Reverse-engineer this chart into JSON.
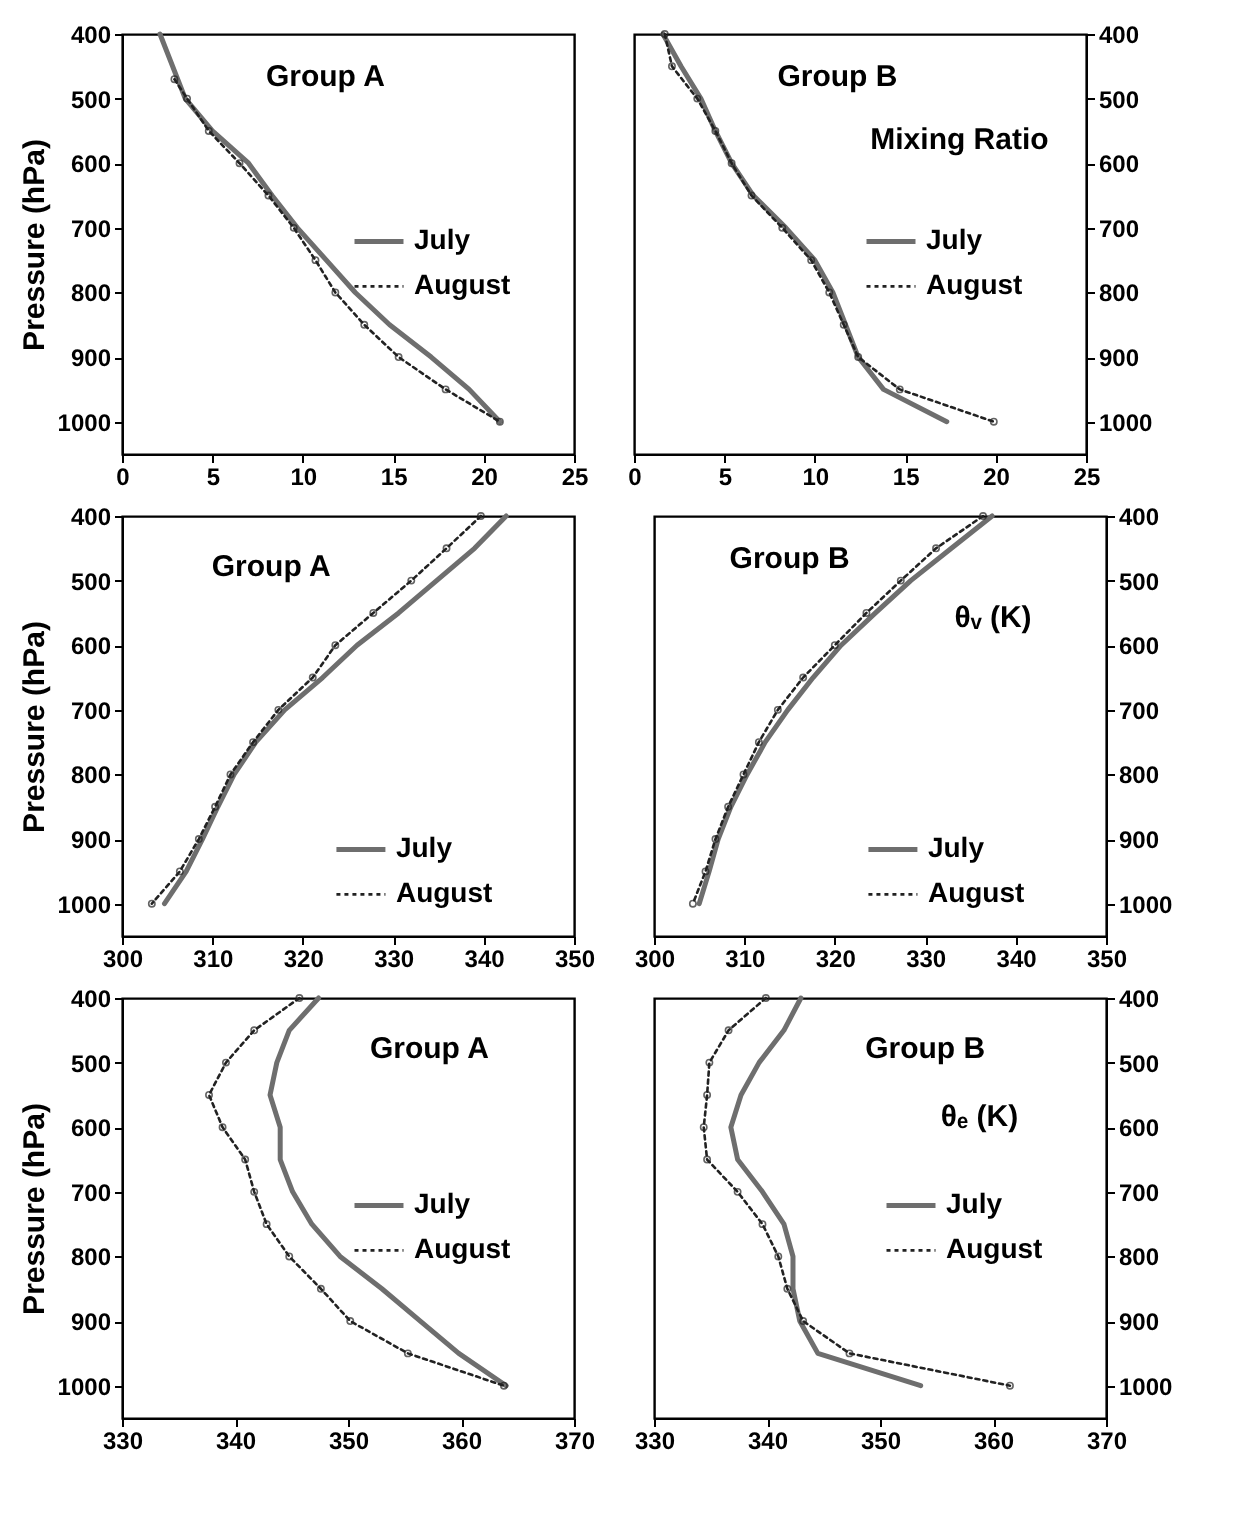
{
  "chart_data": [
    {
      "type": "line",
      "annotations": [
        "Group A"
      ],
      "ylabel": "Pressure (hPa)",
      "xlim": [
        0,
        25
      ],
      "xticks": [
        0,
        5,
        10,
        15,
        20,
        25
      ],
      "ylim": [
        1050,
        400
      ],
      "yticks": [
        400,
        500,
        600,
        700,
        800,
        900,
        1000
      ],
      "legend": "right",
      "grid": false,
      "series": [
        {
          "name": "July",
          "color": "#6e6e6e",
          "line_style": "solid",
          "marker": "none",
          "x": [
            2.1,
            3.5,
            5.0,
            7.0,
            8.3,
            9.7,
            11.3,
            12.9,
            14.8,
            17.1,
            19.2,
            20.9
          ],
          "values": [
            400,
            500,
            550,
            600,
            650,
            700,
            750,
            800,
            850,
            900,
            950,
            1000
          ]
        },
        {
          "name": "August",
          "color": "#222222",
          "line_style": "dotted",
          "marker": "circle",
          "x": [
            2.9,
            3.6,
            4.8,
            6.5,
            8.1,
            9.5,
            10.7,
            11.8,
            13.4,
            15.3,
            17.9,
            20.9
          ],
          "values": [
            470,
            500,
            550,
            600,
            650,
            700,
            750,
            800,
            850,
            900,
            950,
            1000
          ]
        }
      ]
    },
    {
      "type": "line",
      "annotations": [
        "Group B",
        "Mixing Ratio"
      ],
      "xlim": [
        0,
        25
      ],
      "xticks": [
        0,
        5,
        10,
        15,
        20,
        25
      ],
      "ylim": [
        1050,
        400
      ],
      "yticks": [
        400,
        500,
        600,
        700,
        800,
        900,
        1000
      ],
      "legend": "right",
      "grid": false,
      "series": [
        {
          "name": "July",
          "color": "#6e6e6e",
          "line_style": "solid",
          "marker": "none",
          "x": [
            1.6,
            2.6,
            3.7,
            4.5,
            5.4,
            6.6,
            8.4,
            10.0,
            11.0,
            11.7,
            12.4,
            13.8,
            17.3
          ],
          "values": [
            400,
            450,
            500,
            550,
            600,
            650,
            700,
            750,
            800,
            850,
            900,
            950,
            1000
          ]
        },
        {
          "name": "August",
          "color": "#222222",
          "line_style": "dotted",
          "marker": "circle",
          "x": [
            1.7,
            2.1,
            3.5,
            4.5,
            5.4,
            6.5,
            8.2,
            9.8,
            10.8,
            11.6,
            12.4,
            14.7,
            19.9
          ],
          "values": [
            400,
            450,
            500,
            550,
            600,
            650,
            700,
            750,
            800,
            850,
            900,
            950,
            1000
          ]
        }
      ]
    },
    {
      "type": "line",
      "annotations": [
        "Group A"
      ],
      "ylabel": "Pressure (hPa)",
      "xlim": [
        300,
        350
      ],
      "xticks": [
        300,
        310,
        320,
        330,
        340,
        350
      ],
      "ylim": [
        1050,
        400
      ],
      "yticks": [
        400,
        500,
        600,
        700,
        800,
        900,
        1000
      ],
      "legend": "bottom right",
      "grid": false,
      "series": [
        {
          "name": "July",
          "color": "#6e6e6e",
          "line_style": "solid",
          "marker": "none",
          "x": [
            342.5,
            339.0,
            334.8,
            330.6,
            326.0,
            322.2,
            318.0,
            314.8,
            312.4,
            310.6,
            308.9,
            307.1,
            304.7
          ],
          "values": [
            400,
            450,
            500,
            550,
            600,
            650,
            700,
            750,
            800,
            850,
            900,
            950,
            1000
          ]
        },
        {
          "name": "August",
          "color": "#222222",
          "line_style": "dotted",
          "marker": "circle",
          "x": [
            339.7,
            335.9,
            332.0,
            327.8,
            323.6,
            321.1,
            317.3,
            314.5,
            312.0,
            310.3,
            308.5,
            306.4,
            303.3
          ],
          "values": [
            400,
            450,
            500,
            550,
            600,
            650,
            700,
            750,
            800,
            850,
            900,
            950,
            1000
          ]
        }
      ]
    },
    {
      "type": "line",
      "annotations": [
        "Group B",
        "θᵥ (K)"
      ],
      "xlim": [
        300,
        350
      ],
      "xticks": [
        300,
        310,
        320,
        330,
        340,
        350
      ],
      "ylim": [
        1050,
        400
      ],
      "yticks": [
        400,
        500,
        600,
        700,
        800,
        900,
        1000
      ],
      "legend": "bottom right",
      "grid": false,
      "series": [
        {
          "name": "July",
          "color": "#6e6e6e",
          "line_style": "solid",
          "marker": "none",
          "x": [
            337.4,
            332.9,
            328.4,
            324.5,
            320.7,
            317.6,
            314.8,
            312.3,
            310.3,
            308.5,
            307.1,
            306.1,
            305.0
          ],
          "values": [
            400,
            450,
            500,
            550,
            600,
            650,
            700,
            750,
            800,
            850,
            900,
            950,
            1000
          ]
        },
        {
          "name": "August",
          "color": "#222222",
          "line_style": "dotted",
          "marker": "circle",
          "x": [
            336.4,
            331.2,
            327.3,
            323.5,
            320.0,
            316.5,
            313.7,
            311.6,
            309.9,
            308.2,
            306.8,
            305.7,
            304.3
          ],
          "values": [
            400,
            450,
            500,
            550,
            600,
            650,
            700,
            750,
            800,
            850,
            900,
            950,
            1000
          ]
        }
      ]
    },
    {
      "type": "line",
      "annotations": [
        "Group A"
      ],
      "ylabel": "Pressure (hPa)",
      "xlim": [
        330,
        370
      ],
      "xticks": [
        330,
        340,
        350,
        360,
        370
      ],
      "ylim": [
        1050,
        400
      ],
      "yticks": [
        400,
        500,
        600,
        700,
        800,
        900,
        1000
      ],
      "legend": "right",
      "grid": false,
      "series": [
        {
          "name": "July",
          "color": "#6e6e6e",
          "line_style": "solid",
          "marker": "none",
          "x": [
            347.4,
            344.8,
            343.7,
            343.1,
            344.0,
            344.0,
            345.1,
            346.8,
            349.3,
            353.0,
            356.4,
            359.8,
            364.0
          ],
          "values": [
            400,
            450,
            500,
            550,
            600,
            650,
            700,
            750,
            800,
            850,
            900,
            950,
            1000
          ]
        },
        {
          "name": "August",
          "color": "#222222",
          "line_style": "dotted",
          "marker": "circle",
          "x": [
            345.7,
            341.7,
            339.2,
            337.7,
            338.9,
            340.9,
            341.7,
            342.8,
            344.8,
            347.6,
            350.2,
            355.3,
            363.8
          ],
          "values": [
            400,
            450,
            500,
            550,
            600,
            650,
            700,
            750,
            800,
            850,
            900,
            950,
            1000
          ]
        }
      ]
    },
    {
      "type": "line",
      "annotations": [
        "Group B",
        "θₑ (K)"
      ],
      "xlim": [
        330,
        370
      ],
      "xticks": [
        330,
        340,
        350,
        360,
        370
      ],
      "ylim": [
        1050,
        400
      ],
      "yticks": [
        400,
        500,
        600,
        700,
        800,
        900,
        1000
      ],
      "legend": "right",
      "grid": false,
      "series": [
        {
          "name": "July",
          "color": "#6e6e6e",
          "line_style": "solid",
          "marker": "none",
          "x": [
            343.0,
            341.5,
            339.3,
            337.7,
            336.8,
            337.4,
            339.6,
            341.5,
            342.3,
            342.3,
            342.9,
            344.5,
            353.6
          ],
          "values": [
            400,
            450,
            500,
            550,
            600,
            650,
            700,
            750,
            800,
            850,
            900,
            950,
            1000
          ]
        },
        {
          "name": "August",
          "color": "#222222",
          "line_style": "dotted",
          "marker": "circle",
          "x": [
            339.9,
            336.6,
            334.9,
            334.7,
            334.4,
            334.7,
            337.4,
            339.6,
            341.0,
            341.8,
            343.2,
            347.3,
            361.5
          ],
          "values": [
            400,
            450,
            500,
            550,
            600,
            650,
            700,
            750,
            800,
            850,
            900,
            950,
            1000
          ]
        }
      ]
    }
  ]
}
